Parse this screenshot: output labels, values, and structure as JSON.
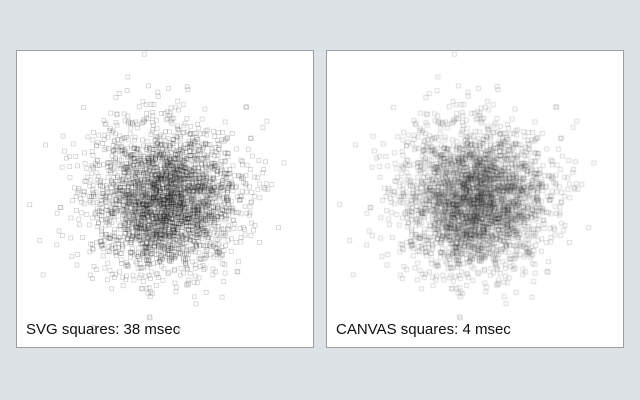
{
  "panels": [
    {
      "id": "svg",
      "render_mode": "svg",
      "marker_shape": "square",
      "caption": "SVG squares: 38 msec"
    },
    {
      "id": "canvas",
      "render_mode": "canvas",
      "marker_shape": "square",
      "caption": "CANVAS squares: 4 msec"
    }
  ],
  "colors": {
    "background": "#dde2e6",
    "panel_bg": "#ffffff",
    "panel_border": "#9a9fa4",
    "marker_stroke": "#000000",
    "caption_text": "#111111"
  }
}
